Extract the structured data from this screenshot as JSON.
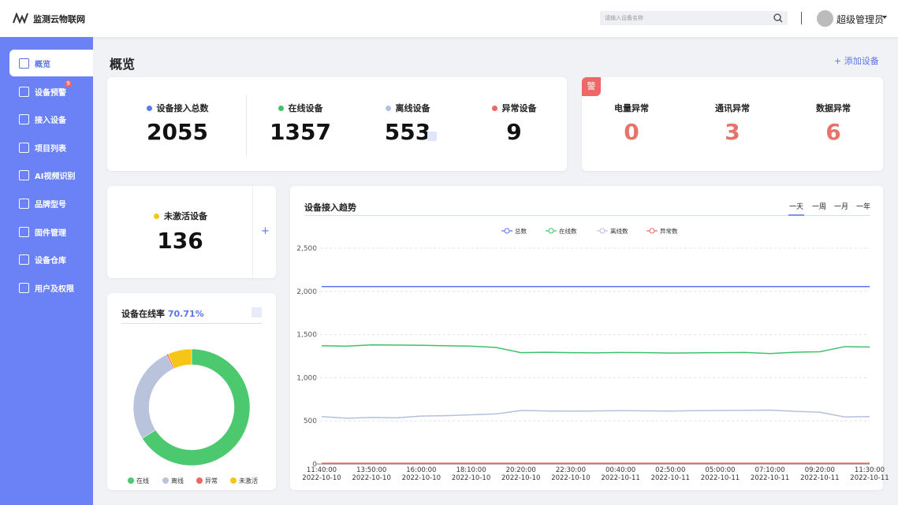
{
  "header": {
    "logo": "监测云物联网",
    "search_placeholder": "请输入设备名称",
    "user": "超级管理员"
  },
  "sidebar": {
    "items": [
      {
        "label": "概览",
        "active": true
      },
      {
        "label": "设备预警",
        "badge": 9
      },
      {
        "label": "接入设备"
      },
      {
        "label": "项目列表"
      },
      {
        "label": "AI视频识别"
      },
      {
        "label": "品牌型号"
      },
      {
        "label": "固件管理"
      },
      {
        "label": "设备仓库"
      },
      {
        "label": "用户及权限"
      }
    ]
  },
  "page": {
    "title": "概览",
    "action": "添加设备"
  },
  "stats": [
    {
      "label": "设备接入总数",
      "value": 2055,
      "color": "#5b7ce8"
    },
    {
      "label": "在线设备",
      "value": 1357,
      "color": "#3cc26a"
    },
    {
      "label": "离线设备",
      "value": 553,
      "color": "#b5c0dc"
    },
    {
      "label": "异常设备",
      "value": 9,
      "color": "#ee6666"
    }
  ],
  "alerts": {
    "badge": "警",
    "items": [
      {
        "label": "电量异常",
        "value": 0
      },
      {
        "label": "通讯异常",
        "value": 3
      },
      {
        "label": "数据异常",
        "value": 6
      }
    ]
  },
  "inactive": {
    "label": "未激活设备",
    "value": 136,
    "color": "#f5c518"
  },
  "chart_data": [
    {
      "type": "pie",
      "title": "设备在线率",
      "rate": "70.71%",
      "categories": [
        "在线",
        "离线",
        "异常",
        "未激活"
      ],
      "values": [
        1357,
        553,
        9,
        136
      ],
      "colors": [
        "#4cc96f",
        "#b9c3dc",
        "#ee6666",
        "#f5c518"
      ]
    },
    {
      "type": "line",
      "title": "设备接入趋势",
      "ranges": [
        "一天",
        "一周",
        "一月",
        "一年"
      ],
      "x_times": [
        "11:40:00",
        null,
        "13:50:00",
        null,
        "16:00:00",
        null,
        "18:10:00",
        null,
        "20:20:00",
        null,
        "22:30:00",
        null,
        "00:40:00",
        null,
        "02:50:00",
        null,
        "05:00:00",
        null,
        "07:10:00",
        null,
        "09:20:00",
        null,
        "11:30:00"
      ],
      "x_dates": [
        "2022-10-10",
        null,
        "2022-10-10",
        null,
        "2022-10-10",
        null,
        "2022-10-10",
        null,
        "2022-10-10",
        null,
        "2022-10-10",
        null,
        "2022-10-11",
        null,
        "2022-10-11",
        null,
        "2022-10-11",
        null,
        "2022-10-11",
        null,
        "2022-10-11",
        null,
        "2022-10-11"
      ],
      "series": [
        {
          "name": "总数",
          "color": "#5b74ec",
          "values": [
            2055,
            2055,
            2055,
            2055,
            2055,
            2055,
            2055,
            2055,
            2055,
            2055,
            2055,
            2055,
            2055,
            2055,
            2055,
            2055,
            2055,
            2055,
            2055,
            2055,
            2055,
            2055,
            2055
          ]
        },
        {
          "name": "在线数",
          "color": "#3cc26a",
          "values": [
            1370,
            1365,
            1380,
            1378,
            1375,
            1370,
            1365,
            1350,
            1290,
            1295,
            1290,
            1288,
            1292,
            1290,
            1285,
            1288,
            1290,
            1292,
            1280,
            1295,
            1300,
            1360,
            1355
          ]
        },
        {
          "name": "离线数",
          "color": "#b5c0e0",
          "values": [
            550,
            530,
            540,
            535,
            555,
            560,
            570,
            580,
            620,
            615,
            612,
            615,
            618,
            616,
            614,
            618,
            620,
            622,
            625,
            610,
            600,
            545,
            550
          ]
        },
        {
          "name": "异常数",
          "color": "#ee6666",
          "values": [
            9,
            9,
            9,
            9,
            9,
            9,
            9,
            9,
            9,
            9,
            9,
            9,
            9,
            9,
            9,
            9,
            9,
            9,
            9,
            9,
            9,
            9,
            9
          ]
        }
      ],
      "ylim": [
        0,
        2500
      ],
      "yticks": [
        0,
        500,
        {
          "value": 1000,
          "label": "1,000"
        },
        {
          "value": 1500,
          "label": "1,500"
        },
        {
          "value": 2000,
          "label": "2,000"
        },
        {
          "value": 2500,
          "label": "2,500"
        }
      ],
      "grid": true
    }
  ]
}
